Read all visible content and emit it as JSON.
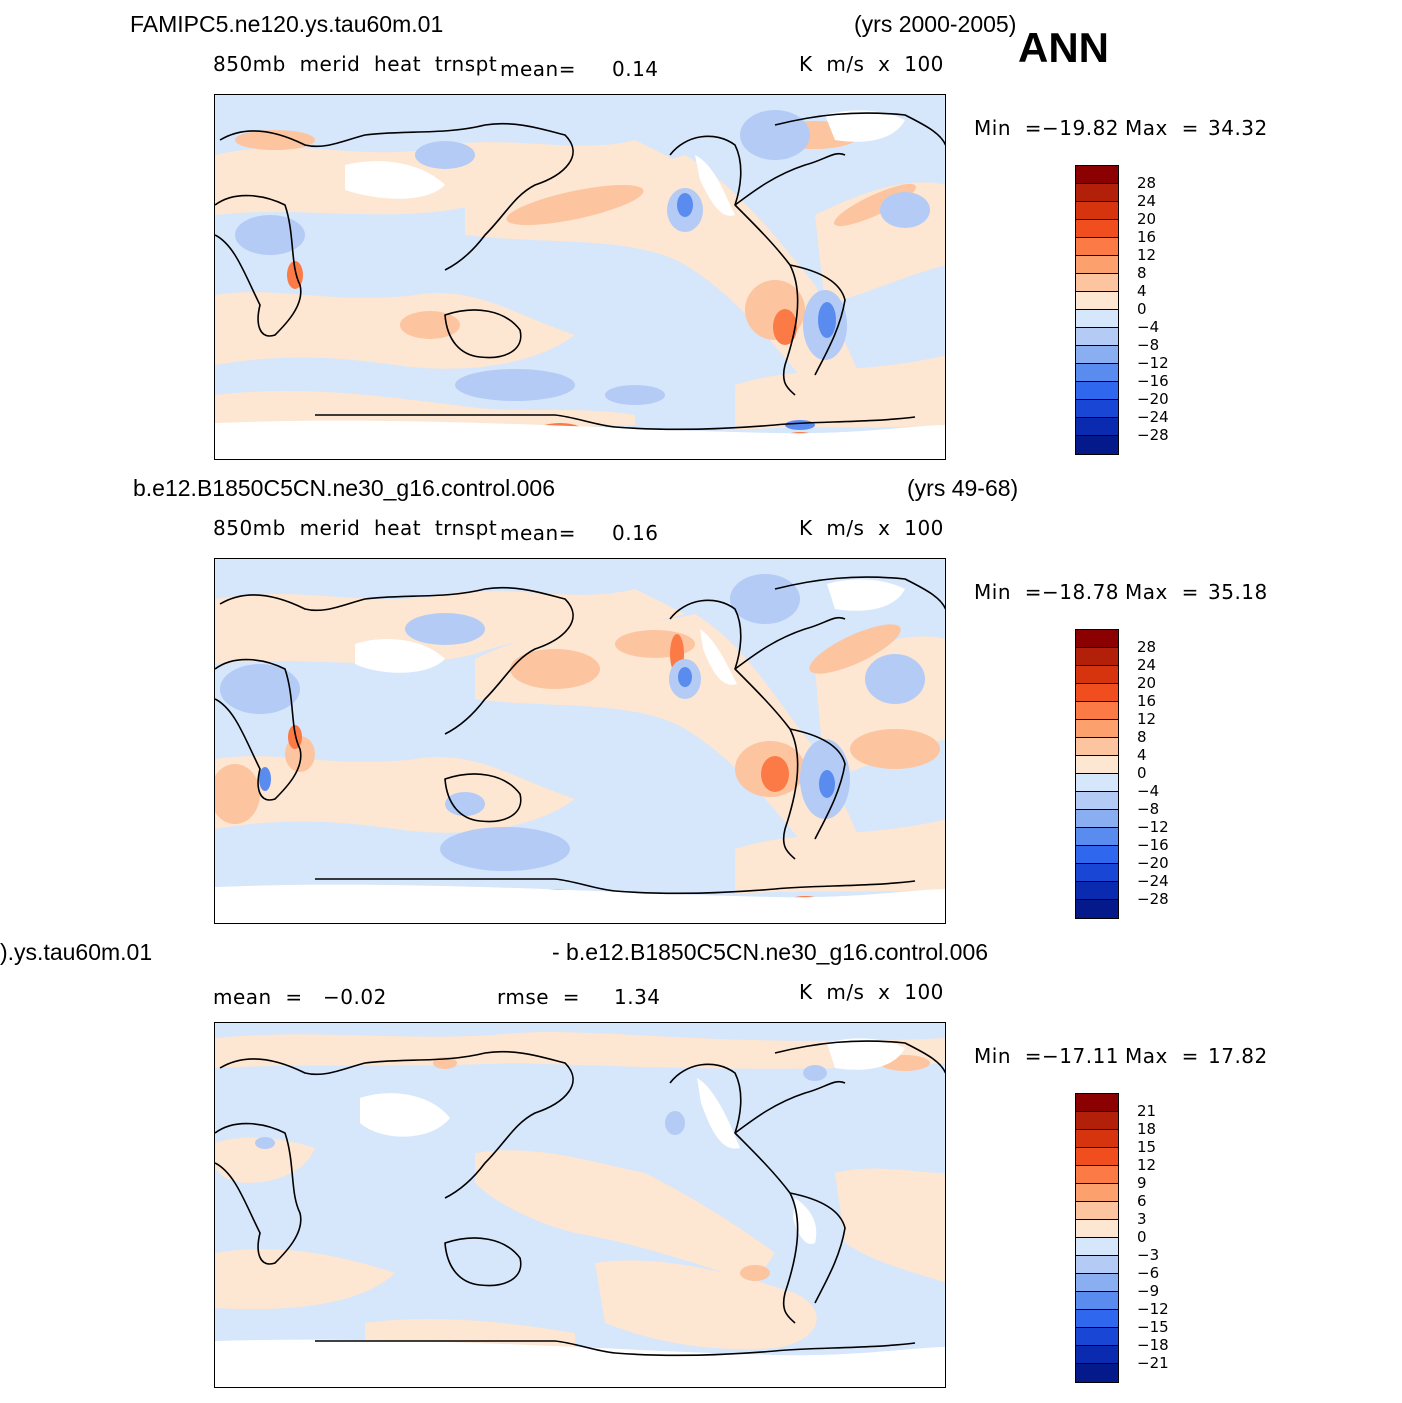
{
  "figure_label": "ANN",
  "units": "K  m/s  x  100",
  "palette": {
    "ocean_base": "#d6e6fb",
    "land_missing": "#ffffff",
    "coast": "#000000"
  },
  "panels": [
    {
      "id": "top",
      "case": "FAMIPC5.ne120.ys.tau60m.01",
      "years": "(yrs 2000-2005)",
      "variable": "850mb  merid  heat  trnspt",
      "mean_label": "mean=",
      "mean_value": "0.14",
      "units": "K  m/s  x  100",
      "min_label": "Min  =",
      "min_value": "−19.82",
      "max_label": "Max  =",
      "max_value": "34.32",
      "colorbar": {
        "labels": [
          "28",
          "24",
          "20",
          "16",
          "12",
          "8",
          "4",
          "0",
          "−4",
          "−8",
          "−12",
          "−16",
          "−20",
          "−24",
          "−28"
        ],
        "colors": [
          "#8b0000",
          "#b3200a",
          "#d6330f",
          "#f04e1e",
          "#fb7a45",
          "#fca06e",
          "#fdc4a0",
          "#fde6d2",
          "#d6e6fb",
          "#b4cbf5",
          "#89aef2",
          "#5a8cf0",
          "#2f68ee",
          "#1a46d6",
          "#0a2ab0",
          "#051a8a"
        ]
      }
    },
    {
      "id": "middle",
      "case": "b.e12.B1850C5CN.ne30_g16.control.006",
      "years": "(yrs 49-68)",
      "variable": "850mb  merid  heat  trnspt",
      "mean_label": "mean=",
      "mean_value": "0.16",
      "units": "K  m/s  x  100",
      "min_label": "Min  =",
      "min_value": "−18.78",
      "max_label": "Max  =",
      "max_value": "35.18",
      "colorbar": {
        "labels": [
          "28",
          "24",
          "20",
          "16",
          "12",
          "8",
          "4",
          "0",
          "−4",
          "−8",
          "−12",
          "−16",
          "−20",
          "−24",
          "−28"
        ],
        "colors": [
          "#8b0000",
          "#b3200a",
          "#d6330f",
          "#f04e1e",
          "#fb7a45",
          "#fca06e",
          "#fdc4a0",
          "#fde6d2",
          "#d6e6fb",
          "#b4cbf5",
          "#89aef2",
          "#5a8cf0",
          "#2f68ee",
          "#1a46d6",
          "#0a2ab0",
          "#051a8a"
        ]
      }
    },
    {
      "id": "bottom",
      "case_a": ").ys.tau60m.01",
      "case_b": "- b.e12.B1850C5CN.ne30_g16.control.006",
      "mean_label": "mean  =",
      "mean_value": "−0.02",
      "rmse_label": "rmse  =",
      "rmse_value": "1.34",
      "units": "K  m/s  x  100",
      "min_label": "Min  =",
      "min_value": "−17.11",
      "max_label": "Max  =",
      "max_value": "17.82",
      "colorbar": {
        "labels": [
          "21",
          "18",
          "15",
          "12",
          "9",
          "6",
          "3",
          "0",
          "−3",
          "−6",
          "−9",
          "−12",
          "−15",
          "−18",
          "−21"
        ],
        "colors": [
          "#8b0000",
          "#b3200a",
          "#d6330f",
          "#f04e1e",
          "#fb7a45",
          "#fca06e",
          "#fdc4a0",
          "#fde6d2",
          "#d6e6fb",
          "#b4cbf5",
          "#89aef2",
          "#5a8cf0",
          "#2f68ee",
          "#1a46d6",
          "#0a2ab0",
          "#051a8a"
        ]
      }
    }
  ]
}
